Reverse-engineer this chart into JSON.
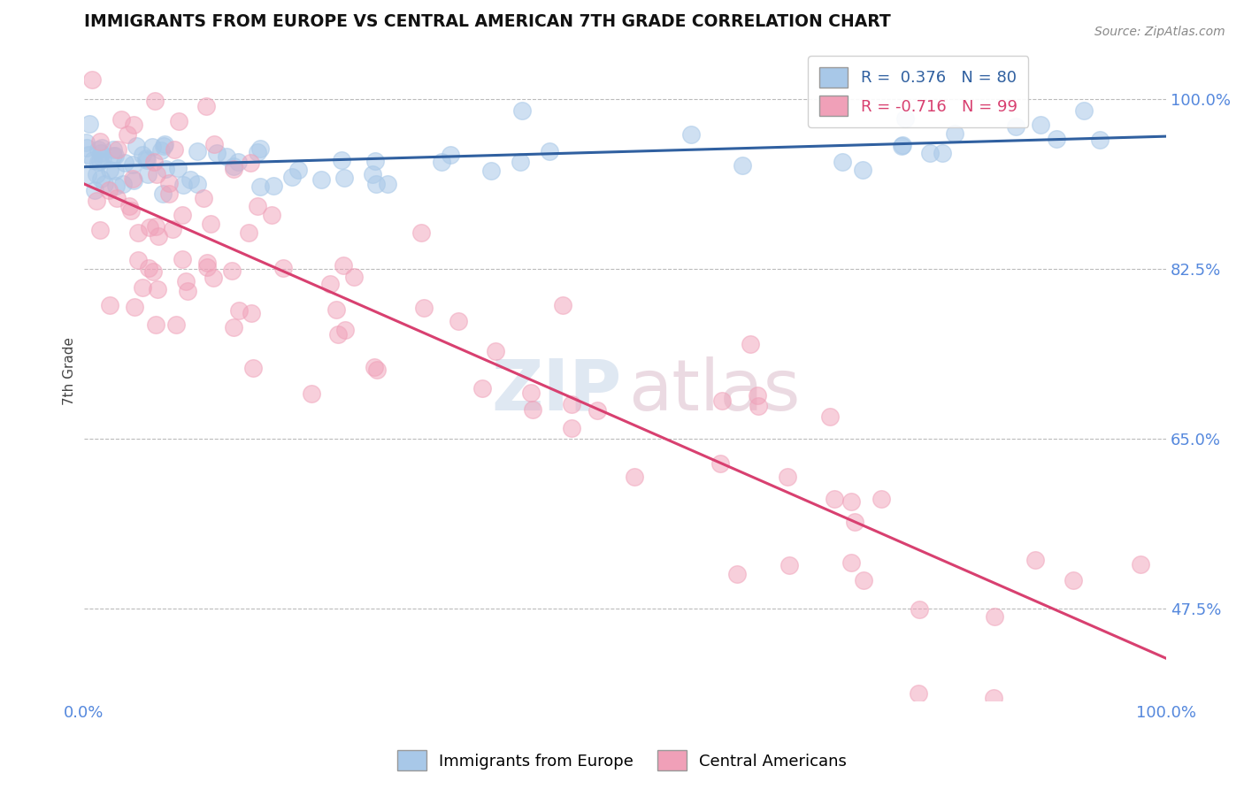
{
  "title": "IMMIGRANTS FROM EUROPE VS CENTRAL AMERICAN 7TH GRADE CORRELATION CHART",
  "source": "Source: ZipAtlas.com",
  "ylabel": "7th Grade",
  "xlim": [
    0.0,
    1.0
  ],
  "ylim": [
    0.38,
    1.06
  ],
  "yticks": [
    0.475,
    0.65,
    0.825,
    1.0
  ],
  "ytick_labels": [
    "47.5%",
    "65.0%",
    "82.5%",
    "100.0%"
  ],
  "xtick_labels": [
    "0.0%",
    "100.0%"
  ],
  "xticks": [
    0.0,
    1.0
  ],
  "blue_R": 0.376,
  "blue_N": 80,
  "pink_R": -0.716,
  "pink_N": 99,
  "blue_color": "#a8c8e8",
  "pink_color": "#f0a0b8",
  "blue_line_color": "#3060a0",
  "pink_line_color": "#d84070",
  "legend_label_blue": "Immigrants from Europe",
  "legend_label_pink": "Central Americans",
  "background_color": "#ffffff",
  "grid_color": "#bbbbbb",
  "title_color": "#111111",
  "axis_label_color": "#5588dd",
  "blue_seed": 42,
  "pink_seed": 123
}
